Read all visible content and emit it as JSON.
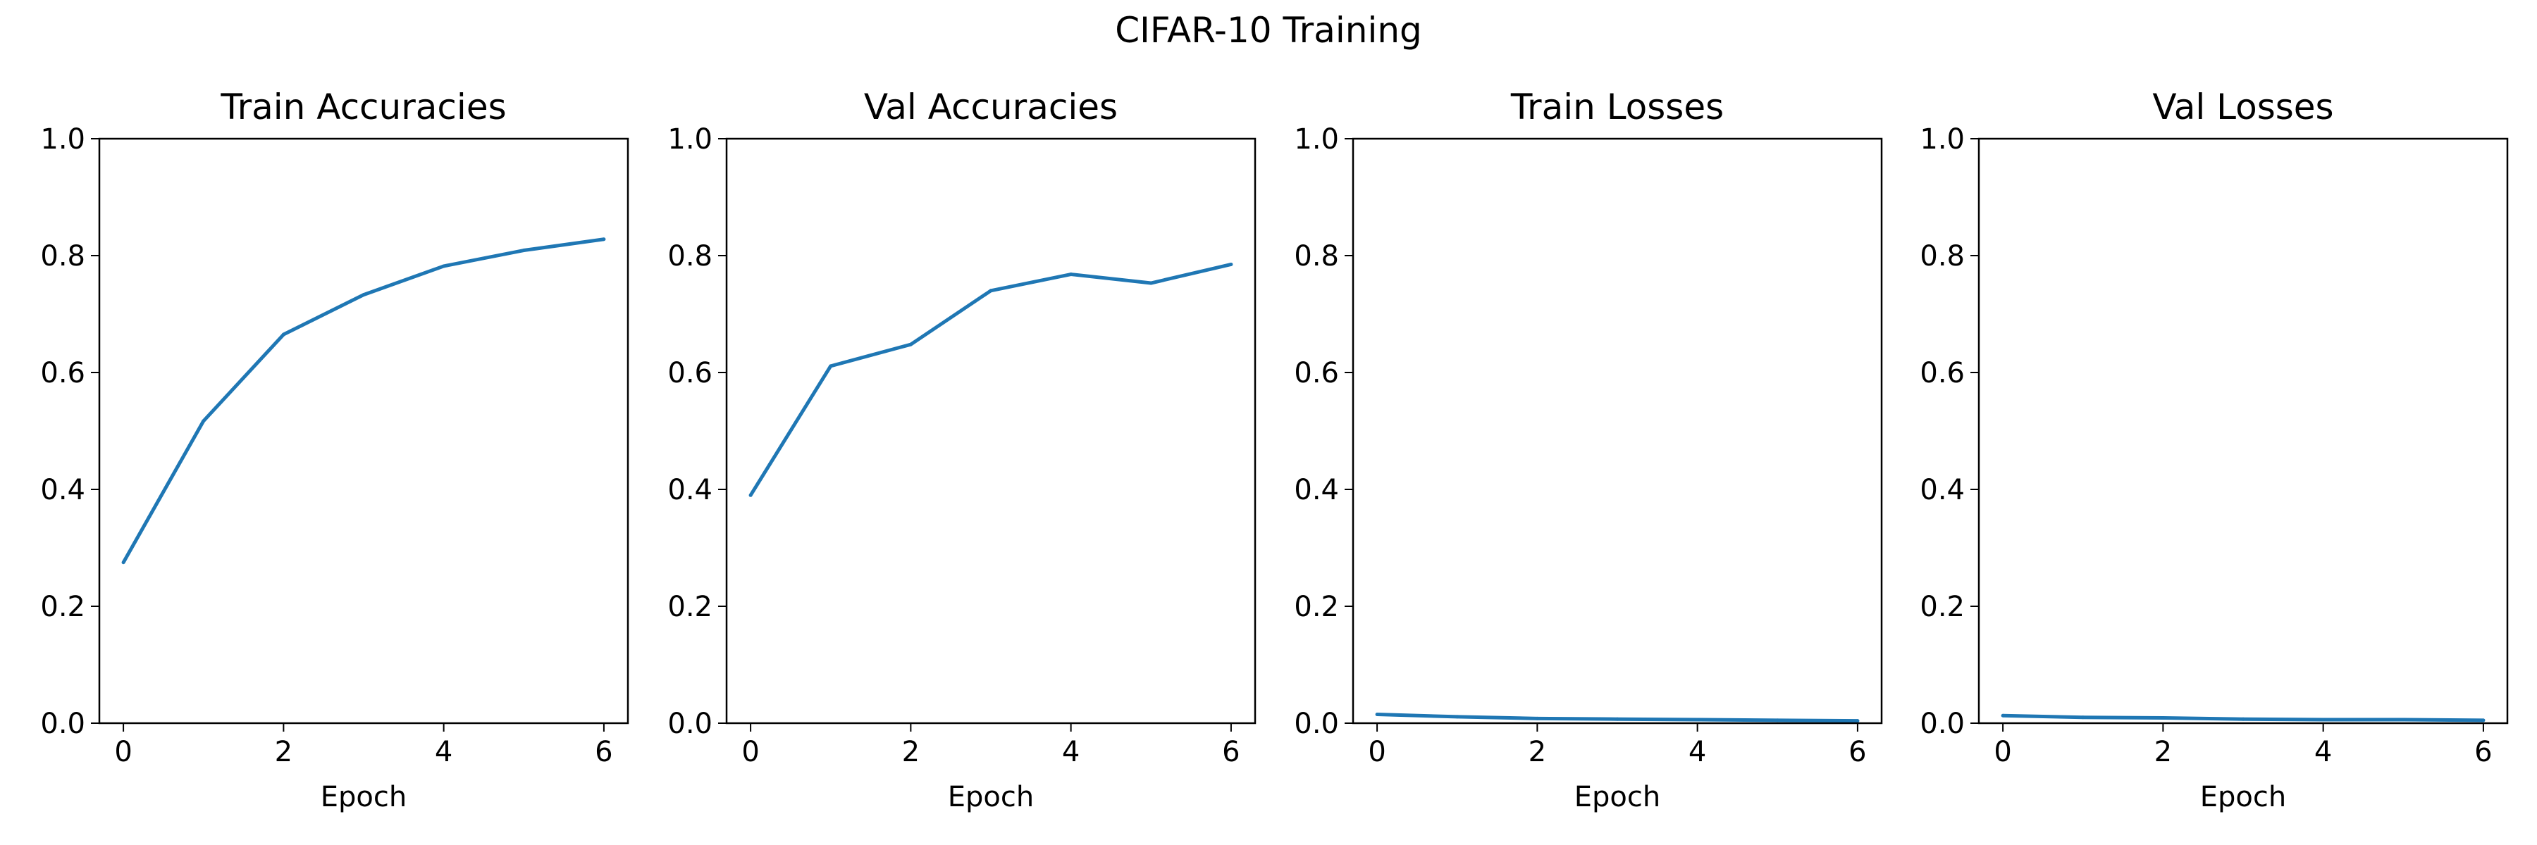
{
  "suptitle": "CIFAR-10 Training",
  "colors": {
    "series": "#1f77b4",
    "axes": "#000000",
    "background": "#ffffff"
  },
  "chart_data": [
    {
      "type": "line",
      "title": "Train Accuracies",
      "xlabel": "Epoch",
      "ylabel": "",
      "x": [
        0,
        1,
        2,
        3,
        4,
        5,
        6
      ],
      "xlim": [
        -0.3,
        6.3
      ],
      "ylim": [
        0,
        1
      ],
      "xticks": [
        "0",
        "2",
        "4",
        "6"
      ],
      "yticks": [
        "0.0",
        "0.2",
        "0.4",
        "0.6",
        "0.8",
        "1.0"
      ],
      "grid": false,
      "series": [
        {
          "values": [
            0.275,
            0.517,
            0.665,
            0.733,
            0.782,
            0.809,
            0.828
          ]
        }
      ]
    },
    {
      "type": "line",
      "title": "Val Accuracies",
      "xlabel": "Epoch",
      "ylabel": "",
      "x": [
        0,
        1,
        2,
        3,
        4,
        5,
        6
      ],
      "xlim": [
        -0.3,
        6.3
      ],
      "ylim": [
        0,
        1
      ],
      "xticks": [
        "0",
        "2",
        "4",
        "6"
      ],
      "yticks": [
        "0.0",
        "0.2",
        "0.4",
        "0.6",
        "0.8",
        "1.0"
      ],
      "grid": false,
      "series": [
        {
          "values": [
            0.39,
            0.611,
            0.648,
            0.74,
            0.768,
            0.753,
            0.785
          ]
        }
      ]
    },
    {
      "type": "line",
      "title": "Train Losses",
      "xlabel": "Epoch",
      "ylabel": "",
      "x": [
        0,
        1,
        2,
        3,
        4,
        5,
        6
      ],
      "xlim": [
        -0.3,
        6.3
      ],
      "ylim": [
        0,
        1
      ],
      "xticks": [
        "0",
        "2",
        "4",
        "6"
      ],
      "yticks": [
        "0.0",
        "0.2",
        "0.4",
        "0.6",
        "0.8",
        "1.0"
      ],
      "grid": false,
      "series": [
        {
          "values": [
            0.015,
            0.011,
            0.008,
            0.007,
            0.006,
            0.005,
            0.004
          ]
        }
      ]
    },
    {
      "type": "line",
      "title": "Val Losses",
      "xlabel": "Epoch",
      "ylabel": "",
      "x": [
        0,
        1,
        2,
        3,
        4,
        5,
        6
      ],
      "xlim": [
        -0.3,
        6.3
      ],
      "ylim": [
        0,
        1
      ],
      "xticks": [
        "0",
        "2",
        "4",
        "6"
      ],
      "yticks": [
        "0.0",
        "0.2",
        "0.4",
        "0.6",
        "0.8",
        "1.0"
      ],
      "grid": false,
      "series": [
        {
          "values": [
            0.013,
            0.01,
            0.009,
            0.007,
            0.006,
            0.006,
            0.005
          ]
        }
      ]
    }
  ]
}
